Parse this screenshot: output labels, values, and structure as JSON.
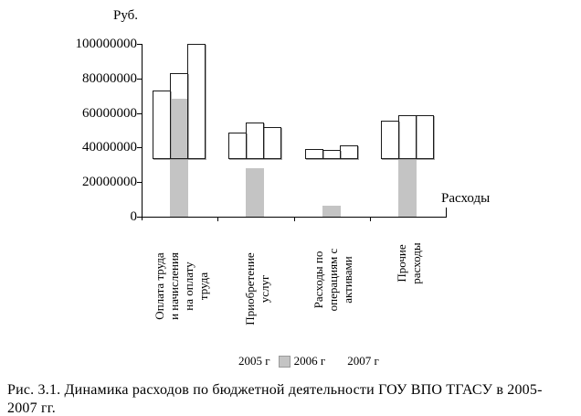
{
  "figure": {
    "y_axis_title": "Руб.",
    "x_axis_title": "Расходы",
    "caption_lines": [
      "Рис. 3.1. Динамика расходов по бюджетной деятельности ГОУ ВПО ТГАСУ в 2005-",
      "2007 гг."
    ]
  },
  "colors": {
    "bar_gray_fill": "#c4c4c4",
    "bar_white_fill": "#ffffff",
    "bar_border": "#1a1a1a",
    "axis": "#000000",
    "shadow": "#a9a9a9",
    "text": "#000000"
  },
  "legend": {
    "items": [
      {
        "label": "2005 г",
        "swatch": "#ffffff"
      },
      {
        "label": "2006 г",
        "swatch": "#c4c4c4"
      },
      {
        "label": "2007 г",
        "swatch": "#ffffff"
      }
    ]
  },
  "chart_data": {
    "type": "bar",
    "title": "",
    "ylabel": "Руб.",
    "xlabel": "Расходы",
    "ylim": [
      0,
      100000000
    ],
    "ytick_values": [
      0,
      20000000,
      40000000,
      60000000,
      80000000,
      100000000
    ],
    "ytick_labels": [
      "0",
      "20000000",
      "40000000",
      "60000000",
      "80000000",
      "100000000"
    ],
    "grid": false,
    "legend_position": "bottom",
    "categories": [
      "Оплата труда и начисления на оплату труда",
      "Приобретение услуг",
      "Расходы по операциям с активами",
      "Прочие расходы"
    ],
    "category_label_lines": [
      [
        "Оплата труда",
        "и начисления",
        "на оплату",
        "труда"
      ],
      [
        "Приобретение",
        "услуг"
      ],
      [
        "Расходы по",
        "операциям с",
        "активами"
      ],
      [
        "Прочие",
        "расходы"
      ]
    ],
    "series": [
      {
        "name": "2005 г",
        "style": "white-outline",
        "values": [
          73000000,
          48500000,
          39000000,
          55500000
        ]
      },
      {
        "name": "2006 г",
        "style": "gray-fill",
        "values": [
          68000000,
          28000000,
          6500000,
          34000000
        ],
        "outline_top_values": [
          83000000,
          54500000,
          38500000,
          58500000
        ]
      },
      {
        "name": "2007 г",
        "style": "white-outline",
        "values": [
          100000000,
          52000000,
          41500000,
          58500000
        ]
      }
    ],
    "white_bar_baseline_value": 33500000
  }
}
